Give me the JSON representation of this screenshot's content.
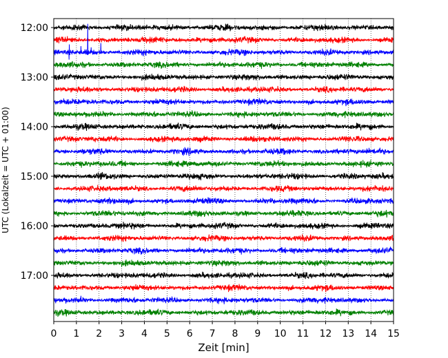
{
  "chart_data": {
    "type": "line",
    "title": "",
    "xlabel": "Zeit  [min]",
    "ylabel": "UTC (Lokalzeit = UTC + 01:00)",
    "xlim": [
      0,
      15
    ],
    "x_ticks": [
      "0",
      "1",
      "2",
      "3",
      "4",
      "5",
      "6",
      "7",
      "8",
      "9",
      "10",
      "11",
      "12",
      "13",
      "14",
      "15"
    ],
    "y_tick_labels": [
      "12:00",
      "13:00",
      "14:00",
      "15:00",
      "16:00",
      "17:00"
    ],
    "y_tick_rows": [
      0,
      4,
      8,
      12,
      16,
      20
    ],
    "grid": "vertical dotted lines at each minute",
    "row_count": 24,
    "row_minutes": 15,
    "row_colors": [
      "#000000",
      "#ff0000",
      "#0000ff",
      "#008000"
    ],
    "events": [
      {
        "row": 2,
        "x_min": 0.05,
        "amplitude": 0.6
      },
      {
        "row": 2,
        "x_min": 0.68,
        "amplitude": 2.0
      },
      {
        "row": 2,
        "x_min": 1.2,
        "amplitude": 0.5
      },
      {
        "row": 2,
        "x_min": 1.5,
        "amplitude": 2.3
      },
      {
        "row": 2,
        "x_min": 1.65,
        "amplitude": 0.4
      },
      {
        "row": 2,
        "x_min": 2.08,
        "amplitude": 1.0
      },
      {
        "row": 2,
        "x_min": 6.8,
        "amplitude": 0.3
      },
      {
        "row": 4,
        "x_min": 4.55,
        "amplitude": 0.3
      },
      {
        "row": 4,
        "x_min": 14.5,
        "amplitude": 0.25
      },
      {
        "row": 17,
        "x_min": 3.4,
        "amplitude": 0.3
      },
      {
        "row": 22,
        "x_min": 1.2,
        "amplitude": 0.35
      },
      {
        "row": 0,
        "x_min": 14.1,
        "amplitude": 0.2
      },
      {
        "row": 13,
        "x_min": 10.2,
        "amplitude": 0.2
      }
    ]
  }
}
